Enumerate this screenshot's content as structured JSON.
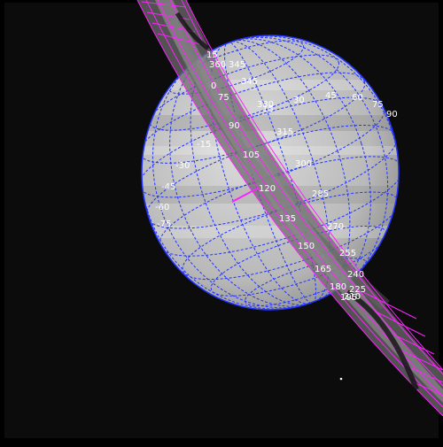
{
  "image": {
    "subject": "Saturn with rings",
    "colors": {
      "background": "#000000",
      "frame_dark": "#0d0d0d",
      "planet": "#bdbdbd",
      "planet_light": "#d9d9d9",
      "planet_shadow": "#7a7a7a",
      "grid": "#1f2cff",
      "ring_grid": "#ff22ff",
      "ring": "#6e6e6e",
      "label": "#ffffff"
    },
    "latitude_labels": [
      "15",
      "0",
      "-15",
      "-30",
      "-45",
      "-60",
      "-75",
      "75",
      "60",
      "45",
      "30",
      "15",
      "90"
    ],
    "longitude_labels": [
      "345",
      "330",
      "315",
      "300",
      "285",
      "270",
      "255",
      "240",
      "225",
      "210",
      "195",
      "180",
      "165",
      "150",
      "135",
      "120",
      "105",
      "90",
      "75",
      "60",
      "45",
      "30",
      "15",
      "60",
      "75",
      "90"
    ],
    "top_labels": [
      "360",
      "345",
      "15",
      "60",
      "75",
      "90",
      "90",
      "75",
      "60",
      "45",
      "30",
      "15",
      "330"
    ],
    "extra_labels": [
      "360",
      "345",
      "15",
      "60",
      "90",
      "75",
      "75",
      "90",
      "30",
      "45",
      "60",
      "75",
      "90"
    ]
  }
}
